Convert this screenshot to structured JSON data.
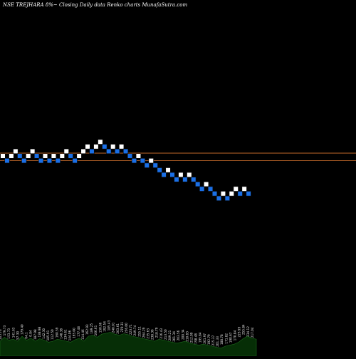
{
  "colors": {
    "background": "#000000",
    "up_box": "#ffffff",
    "down_box": "#1a6fe6",
    "box_border": "#0a0a0a",
    "price_lines": "#c0682a",
    "volume_fill": "#062e06",
    "volume_stroke": "#1c6a1c",
    "text": "#ffffff"
  },
  "header": {
    "title": "NSE TREJHARA 8%~  Closing Daily data  Renko  charts MunafaSutra.com"
  },
  "chart_data": [
    {
      "type": "renko",
      "title": "NSE TREJHARA 8%~  Closing Daily data  Renko  charts MunafaSutra.com",
      "bricks": [
        {
          "col": 0,
          "level": 0,
          "dir": "up"
        },
        {
          "col": 1,
          "level": -1,
          "dir": "down"
        },
        {
          "col": 2,
          "level": 0,
          "dir": "up"
        },
        {
          "col": 3,
          "level": 1,
          "dir": "up"
        },
        {
          "col": 4,
          "level": 0,
          "dir": "down"
        },
        {
          "col": 5,
          "level": -1,
          "dir": "down"
        },
        {
          "col": 6,
          "level": 0,
          "dir": "up"
        },
        {
          "col": 7,
          "level": 1,
          "dir": "up"
        },
        {
          "col": 8,
          "level": 0,
          "dir": "down"
        },
        {
          "col": 9,
          "level": -1,
          "dir": "down"
        },
        {
          "col": 10,
          "level": 0,
          "dir": "up"
        },
        {
          "col": 11,
          "level": -1,
          "dir": "down"
        },
        {
          "col": 12,
          "level": 0,
          "dir": "up"
        },
        {
          "col": 13,
          "level": -1,
          "dir": "down"
        },
        {
          "col": 14,
          "level": 0,
          "dir": "up"
        },
        {
          "col": 15,
          "level": 1,
          "dir": "up"
        },
        {
          "col": 16,
          "level": 0,
          "dir": "down"
        },
        {
          "col": 17,
          "level": -1,
          "dir": "down"
        },
        {
          "col": 18,
          "level": 0,
          "dir": "up"
        },
        {
          "col": 19,
          "level": 1,
          "dir": "up"
        },
        {
          "col": 20,
          "level": 2,
          "dir": "up"
        },
        {
          "col": 21,
          "level": 1,
          "dir": "down"
        },
        {
          "col": 22,
          "level": 2,
          "dir": "up"
        },
        {
          "col": 23,
          "level": 3,
          "dir": "up"
        },
        {
          "col": 24,
          "level": 2,
          "dir": "down"
        },
        {
          "col": 25,
          "level": 1,
          "dir": "down"
        },
        {
          "col": 26,
          "level": 2,
          "dir": "up"
        },
        {
          "col": 27,
          "level": 1,
          "dir": "down"
        },
        {
          "col": 28,
          "level": 2,
          "dir": "up"
        },
        {
          "col": 29,
          "level": 1,
          "dir": "down"
        },
        {
          "col": 30,
          "level": 0,
          "dir": "down"
        },
        {
          "col": 31,
          "level": -1,
          "dir": "down"
        },
        {
          "col": 32,
          "level": 0,
          "dir": "up"
        },
        {
          "col": 33,
          "level": -1,
          "dir": "down"
        },
        {
          "col": 34,
          "level": -2,
          "dir": "down"
        },
        {
          "col": 35,
          "level": -1,
          "dir": "up"
        },
        {
          "col": 36,
          "level": -2,
          "dir": "down"
        },
        {
          "col": 37,
          "level": -3,
          "dir": "down"
        },
        {
          "col": 38,
          "level": -4,
          "dir": "down"
        },
        {
          "col": 39,
          "level": -3,
          "dir": "up"
        },
        {
          "col": 40,
          "level": -4,
          "dir": "down"
        },
        {
          "col": 41,
          "level": -5,
          "dir": "down"
        },
        {
          "col": 42,
          "level": -4,
          "dir": "up"
        },
        {
          "col": 43,
          "level": -5,
          "dir": "down"
        },
        {
          "col": 44,
          "level": -4,
          "dir": "up"
        },
        {
          "col": 45,
          "level": -5,
          "dir": "down"
        },
        {
          "col": 46,
          "level": -6,
          "dir": "down"
        },
        {
          "col": 47,
          "level": -7,
          "dir": "down"
        },
        {
          "col": 48,
          "level": -6,
          "dir": "up"
        },
        {
          "col": 49,
          "level": -7,
          "dir": "down"
        },
        {
          "col": 50,
          "level": -8,
          "dir": "down"
        },
        {
          "col": 51,
          "level": -9,
          "dir": "down"
        },
        {
          "col": 52,
          "level": -8,
          "dir": "up"
        },
        {
          "col": 53,
          "level": -9,
          "dir": "down"
        },
        {
          "col": 54,
          "level": -8,
          "dir": "up"
        },
        {
          "col": 55,
          "level": -7,
          "dir": "up"
        },
        {
          "col": 56,
          "level": -8,
          "dir": "down"
        },
        {
          "col": 57,
          "level": -7,
          "dir": "up"
        },
        {
          "col": 58,
          "level": -8,
          "dir": "down"
        }
      ],
      "reference_lines": [
        0,
        -1.6
      ]
    },
    {
      "type": "area",
      "title": "",
      "values": [
        30,
        38,
        32,
        34,
        30,
        40,
        32,
        36,
        30,
        35,
        32,
        28,
        30,
        34,
        32,
        30,
        28,
        33,
        36,
        30,
        40,
        42,
        38,
        44,
        46,
        48,
        44,
        42,
        45,
        43,
        40,
        38,
        36,
        34,
        32,
        30,
        34,
        32,
        30,
        28,
        26,
        28,
        30,
        26,
        24,
        22,
        24,
        22,
        20,
        18,
        16,
        20,
        22,
        24,
        28,
        35,
        40,
        36,
        34
      ],
      "ylim": [
        0,
        100
      ],
      "labels": [
        "105.73",
        "179.73",
        "153.73",
        "141.63",
        "57.30",
        "179.40",
        "64.1",
        "0.84",
        "187.98",
        "138.98",
        "142.30",
        "185.91",
        "112.50",
        "160.59",
        "148.38",
        "134.61",
        "144.06",
        "165.00",
        "177.48",
        "114.46",
        "162.93",
        "189.25",
        "166.61",
        "150.66",
        "192.54",
        "185.43",
        "248.01",
        "203.61",
        "279.31",
        "256.00",
        "223.71",
        "249.74",
        "255.11",
        "264.29",
        "235.63",
        "238.36",
        "218.79",
        "216.43",
        "213.50",
        "209.21",
        "201.34",
        "203.56",
        "200.34",
        "210.83",
        "212.09",
        "198.48",
        "195.84",
        "201.97",
        "192.79",
        "215.37",
        "201.33",
        "188.78",
        "171.82",
        "190.67",
        "170.84",
        "223.93",
        "255.84",
        "234.12",
        "217.04"
      ]
    }
  ]
}
